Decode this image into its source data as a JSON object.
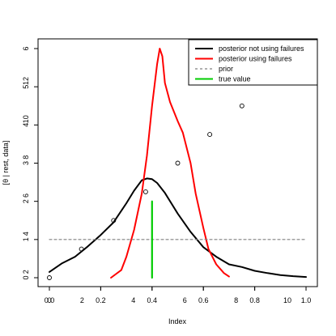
{
  "chart_data": {
    "type": "line",
    "xlabel": "Index",
    "ylabel": "[θ | rest, data]",
    "xlim": [
      0,
      1
    ],
    "ylim": [
      0,
      6
    ],
    "x_tick_labels": [
      "0.0",
      "0.2",
      "0.4",
      "0.6",
      "0.8",
      "1.0"
    ],
    "x_tick_values": [
      0,
      0.2,
      0.4,
      0.6,
      0.8,
      1.0
    ],
    "y_tick_labels": [
      "0",
      "1",
      "2",
      "3",
      "4",
      "5",
      "6"
    ],
    "y_tick_values": [
      0,
      1,
      2,
      3,
      4,
      5,
      6
    ],
    "x_overlay_tick_labels": [
      "0",
      "2",
      "4",
      "6",
      "8",
      "10"
    ],
    "x_overlay_tick_values": [
      0,
      0.2,
      0.4,
      0.6,
      0.8,
      1.0
    ],
    "y_overlay_tick_labels": [
      "0",
      "2",
      "4",
      "6",
      "8",
      "10",
      "12"
    ],
    "y_overlay_tick_values": [
      0,
      1,
      2,
      3,
      4,
      5,
      6
    ],
    "legend_position": "top-right",
    "grid": false,
    "series": [
      {
        "name": "posterior not using failures",
        "color": "#000000",
        "style": "solid",
        "x": [
          0.0,
          0.05,
          0.1,
          0.15,
          0.2,
          0.25,
          0.3,
          0.33,
          0.36,
          0.38,
          0.4,
          0.42,
          0.45,
          0.5,
          0.55,
          0.6,
          0.65,
          0.7,
          0.75,
          0.8,
          0.85,
          0.9,
          0.95,
          1.0
        ],
        "y": [
          0.15,
          0.38,
          0.55,
          0.82,
          1.12,
          1.45,
          1.95,
          2.28,
          2.55,
          2.6,
          2.58,
          2.48,
          2.22,
          1.68,
          1.2,
          0.8,
          0.55,
          0.35,
          0.28,
          0.18,
          0.12,
          0.07,
          0.04,
          0.02
        ]
      },
      {
        "name": "posterior using failures",
        "color": "#ff0000",
        "style": "solid",
        "x": [
          0.24,
          0.28,
          0.3,
          0.33,
          0.36,
          0.38,
          0.4,
          0.42,
          0.43,
          0.44,
          0.45,
          0.47,
          0.5,
          0.52,
          0.55,
          0.57,
          0.6,
          0.62,
          0.65,
          0.68,
          0.7
        ],
        "y": [
          0.0,
          0.2,
          0.55,
          1.25,
          2.2,
          3.2,
          4.5,
          5.6,
          6.0,
          5.8,
          5.1,
          4.6,
          4.1,
          3.8,
          3.0,
          2.2,
          1.3,
          0.75,
          0.35,
          0.12,
          0.03
        ]
      },
      {
        "name": "prior",
        "color": "#808080",
        "style": "dashed",
        "x": [
          0,
          1
        ],
        "y": [
          1,
          1
        ]
      },
      {
        "name": "true value",
        "color": "#00cc00",
        "style": "solid",
        "x": [
          0.4,
          0.4
        ],
        "y": [
          0,
          2
        ]
      }
    ],
    "scatter": {
      "x": [
        0.0,
        0.125,
        0.25,
        0.375,
        0.5,
        0.625,
        0.75,
        0.875,
        1.0
      ],
      "y": [
        0.0,
        0.75,
        1.5,
        2.25,
        3.0,
        3.75,
        4.5,
        5.25,
        6.0
      ]
    }
  }
}
